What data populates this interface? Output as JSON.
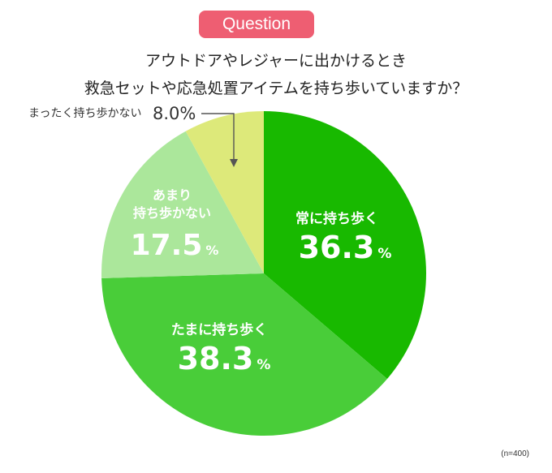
{
  "badge": "Question",
  "question": {
    "line1": "アウトドアやレジャーに出かけるとき",
    "line2": "救急セットや応急処置アイテムを持ち歩いていますか？"
  },
  "sample_note": "(n=400)",
  "chart_data": {
    "type": "pie",
    "title": "",
    "slices": [
      {
        "label": "常に持ち歩く",
        "value": 36.3,
        "color": "#18b900"
      },
      {
        "label": "たまに持ち歩く",
        "value": 38.3,
        "color": "#49cd39"
      },
      {
        "label": "あまり持ち歩かない",
        "value": 17.5,
        "color": "#abe79b"
      },
      {
        "label": "まったく持ち歩かない",
        "value": 8.0,
        "color": "#dde97a"
      }
    ],
    "unit": "%"
  }
}
